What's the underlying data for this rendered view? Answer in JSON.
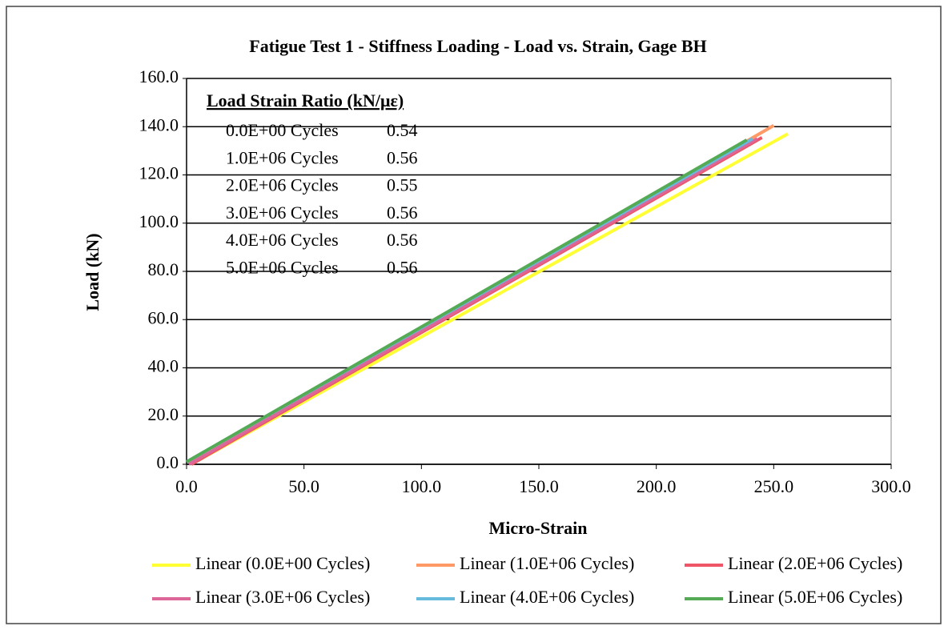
{
  "chart_data": {
    "type": "line",
    "title": "Fatigue Test 1 - Stiffness Loading - Load vs. Strain, Gage BH",
    "x_label": "Micro-Strain",
    "y_label": "Load (kN)",
    "xlim": [
      0,
      300
    ],
    "ylim": [
      0,
      160
    ],
    "xticks": [
      {
        "value": 0,
        "label": "0.0"
      },
      {
        "value": 50,
        "label": "50.0"
      },
      {
        "value": 100,
        "label": "100.0"
      },
      {
        "value": 150,
        "label": "150.0"
      },
      {
        "value": 200,
        "label": "200.0"
      },
      {
        "value": 250,
        "label": "250.0"
      },
      {
        "value": 300,
        "label": "300.0"
      }
    ],
    "yticks": [
      {
        "value": 0,
        "label": "0.0"
      },
      {
        "value": 20,
        "label": "20.0"
      },
      {
        "value": 40,
        "label": "40.0"
      },
      {
        "value": 60,
        "label": "60.0"
      },
      {
        "value": 80,
        "label": "80.0"
      },
      {
        "value": 100,
        "label": "100.0"
      },
      {
        "value": 120,
        "label": "120.0"
      },
      {
        "value": 140,
        "label": "140.0"
      },
      {
        "value": 160,
        "label": "160.0"
      }
    ],
    "grid": true,
    "series": [
      {
        "name": "Linear (0.0E+00 Cycles)",
        "color": "#ffff33",
        "x": [
          2,
          256
        ],
        "values": [
          0,
          137
        ]
      },
      {
        "name": "Linear (1.0E+06 Cycles)",
        "color": "#ff9966",
        "x": [
          2,
          250
        ],
        "values": [
          0,
          140.5
        ]
      },
      {
        "name": "Linear (2.0E+06 Cycles)",
        "color": "#ee5566",
        "x": [
          2,
          245
        ],
        "values": [
          0,
          135.5
        ]
      },
      {
        "name": "Linear (3.0E+06 Cycles)",
        "color": "#dd6699",
        "x": [
          1,
          243
        ],
        "values": [
          0,
          135
        ]
      },
      {
        "name": "Linear (4.0E+06 Cycles)",
        "color": "#66bbdd",
        "x": [
          0,
          241
        ],
        "values": [
          1,
          135
        ]
      },
      {
        "name": "Linear (5.0E+06 Cycles)",
        "color": "#55aa55",
        "x": [
          0,
          238.5
        ],
        "values": [
          1,
          134.5
        ]
      }
    ],
    "annotation": {
      "title": "Load Strain Ratio (kN/με)",
      "rows": [
        {
          "label": "0.0E+00 Cycles",
          "ratio": 0.54
        },
        {
          "label": "1.0E+06 Cycles",
          "ratio": 0.56
        },
        {
          "label": "2.0E+06 Cycles",
          "ratio": 0.55
        },
        {
          "label": "3.0E+06 Cycles",
          "ratio": 0.56
        },
        {
          "label": "4.0E+06 Cycles",
          "ratio": 0.56
        },
        {
          "label": "5.0E+06 Cycles",
          "ratio": 0.56
        }
      ]
    }
  }
}
